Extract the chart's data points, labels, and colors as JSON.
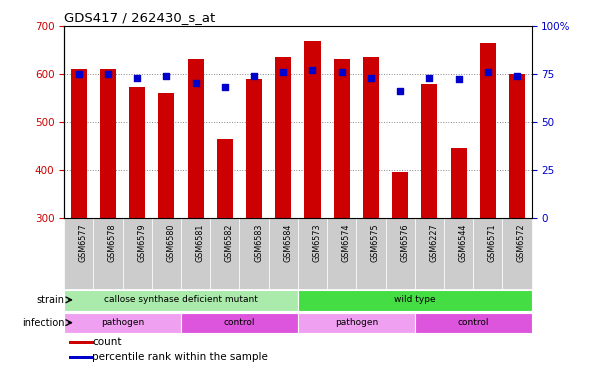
{
  "title": "GDS417 / 262430_s_at",
  "samples": [
    "GSM6577",
    "GSM6578",
    "GSM6579",
    "GSM6580",
    "GSM6581",
    "GSM6582",
    "GSM6583",
    "GSM6584",
    "GSM6573",
    "GSM6574",
    "GSM6575",
    "GSM6576",
    "GSM6227",
    "GSM6544",
    "GSM6571",
    "GSM6572"
  ],
  "bar_values": [
    610,
    610,
    573,
    560,
    630,
    465,
    588,
    635,
    668,
    630,
    635,
    395,
    578,
    445,
    663,
    600
  ],
  "percentile_values": [
    75,
    75,
    73,
    74,
    70,
    68,
    74,
    76,
    77,
    76,
    73,
    66,
    73,
    72,
    76,
    74
  ],
  "bar_color": "#cc0000",
  "dot_color": "#0000cc",
  "ylim_left": [
    300,
    700
  ],
  "ylim_right": [
    0,
    100
  ],
  "yticks_left": [
    300,
    400,
    500,
    600,
    700
  ],
  "yticks_right": [
    0,
    25,
    50,
    75,
    100
  ],
  "grid_levels": [
    400,
    500,
    600
  ],
  "strain_labels": [
    {
      "text": "callose synthase deficient mutant",
      "start": 0,
      "end": 7,
      "color": "#aaeaaa"
    },
    {
      "text": "wild type",
      "start": 8,
      "end": 15,
      "color": "#44dd44"
    }
  ],
  "infection_labels": [
    {
      "text": "pathogen",
      "start": 0,
      "end": 3,
      "color": "#f0a0f0"
    },
    {
      "text": "control",
      "start": 4,
      "end": 7,
      "color": "#dd55dd"
    },
    {
      "text": "pathogen",
      "start": 8,
      "end": 11,
      "color": "#f0a0f0"
    },
    {
      "text": "control",
      "start": 12,
      "end": 15,
      "color": "#dd55dd"
    }
  ],
  "bar_width": 0.55,
  "tick_color_left": "#cc0000",
  "tick_color_right": "#0000cc",
  "bg_color": "#ffffff",
  "xticklabel_bg": "#cccccc",
  "strain_row_label": "strain",
  "infection_row_label": "infection",
  "legend_items": [
    {
      "label": "count",
      "color": "#cc0000"
    },
    {
      "label": "percentile rank within the sample",
      "color": "#0000cc"
    }
  ]
}
